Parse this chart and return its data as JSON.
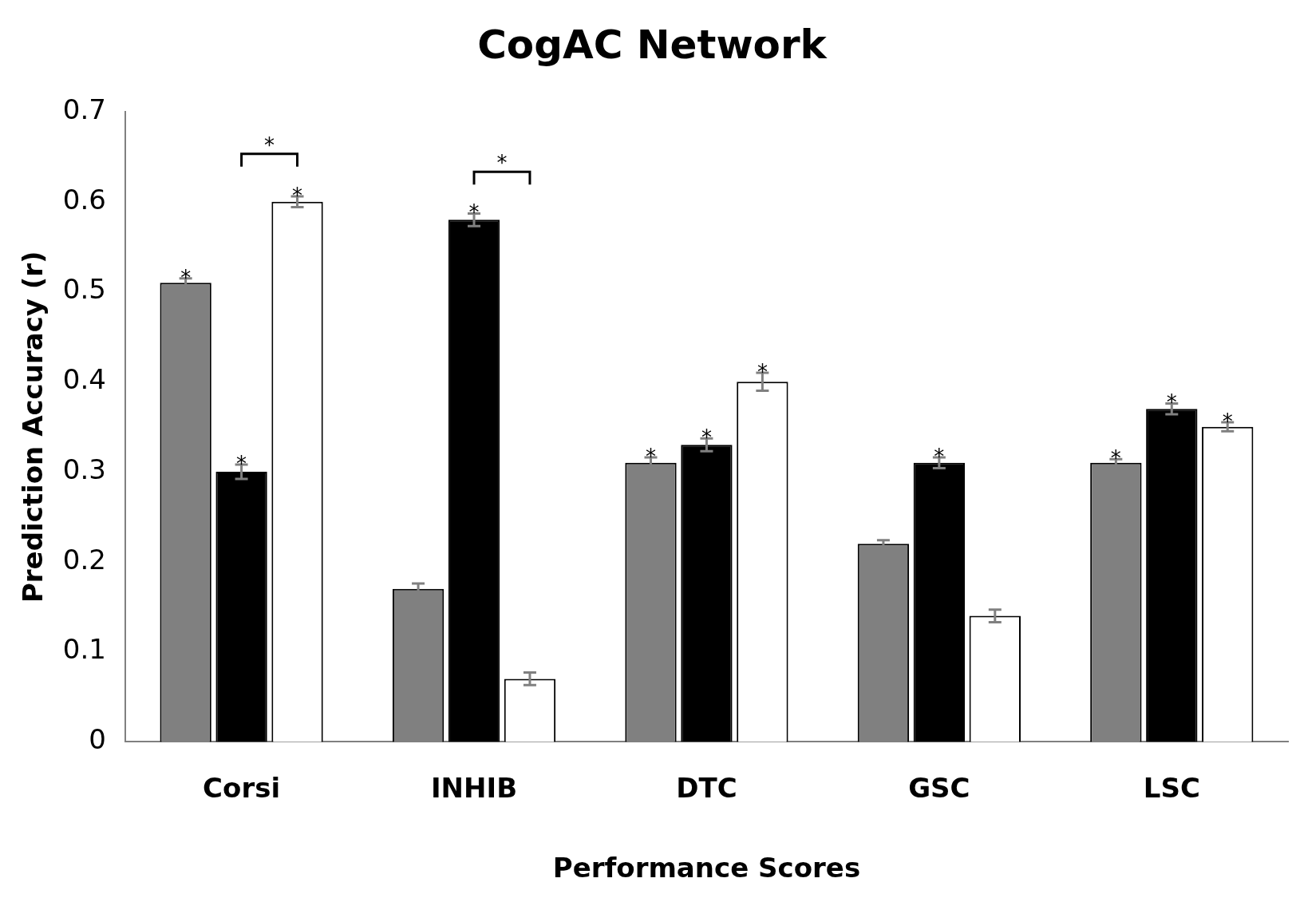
{
  "chart_data": {
    "type": "bar",
    "title": "CogAC Network",
    "xlabel": "Performance Scores",
    "ylabel": "Prediction Accuracy (r)",
    "categories": [
      "Corsi",
      "INHIB",
      "DTC",
      "GSC",
      "LSC"
    ],
    "series": [
      {
        "color": "#808080",
        "values": [
          0.51,
          0.17,
          0.31,
          0.22,
          0.31
        ],
        "errors": [
          0.005,
          0.006,
          0.006,
          0.004,
          0.004
        ],
        "value_labels": [
          "*",
          null,
          "*",
          null,
          "*"
        ]
      },
      {
        "color": "#000000",
        "values": [
          0.3,
          0.58,
          0.33,
          0.31,
          0.37
        ],
        "errors": [
          0.008,
          0.007,
          0.007,
          0.006,
          0.006
        ],
        "value_labels": [
          "*",
          "*",
          "*",
          "*",
          "*"
        ]
      },
      {
        "color": "#ffffff",
        "values": [
          0.6,
          0.07,
          0.4,
          0.14,
          0.35
        ],
        "errors": [
          0.006,
          0.007,
          0.01,
          0.007,
          0.005
        ],
        "value_labels": [
          "*",
          null,
          "*",
          null,
          "*"
        ]
      }
    ],
    "annotations": [
      "*",
      "*"
    ],
    "ylim": [
      0,
      0.7
    ],
    "yticks": [
      0,
      0.1,
      0.2,
      0.3,
      0.4,
      0.5,
      0.6,
      0.7
    ],
    "grid": false,
    "legend": false
  }
}
